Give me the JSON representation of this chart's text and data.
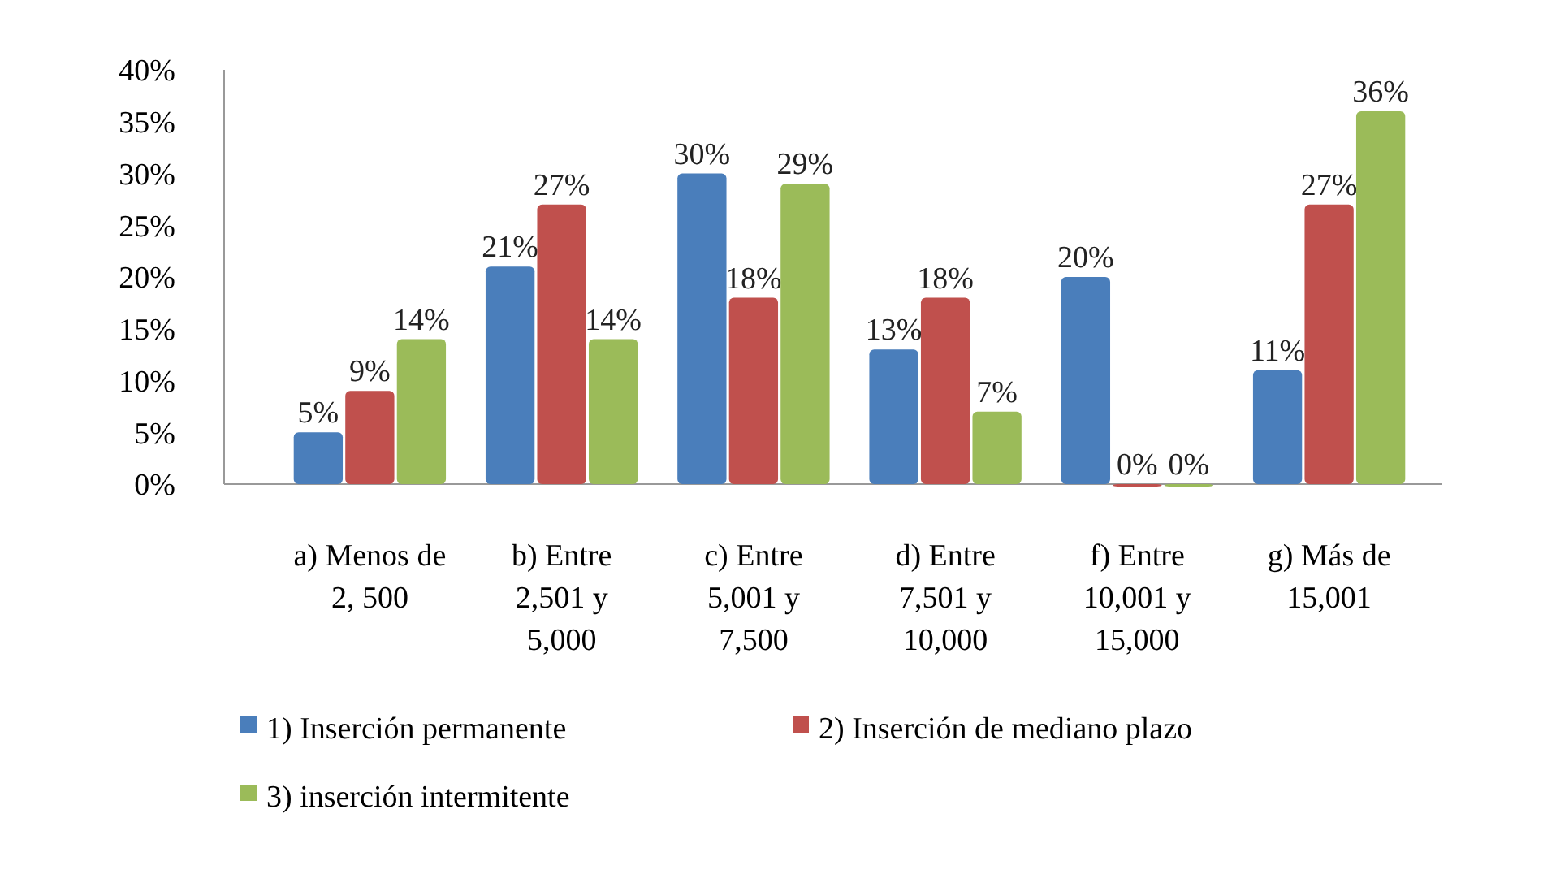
{
  "chart_data": {
    "type": "bar",
    "categories": [
      "a) Menos de 2, 500",
      "b) Entre 2,501 y 5,000",
      "c) Entre 5,001 y 7,500",
      "d) Entre 7,501 y 10,000",
      "f) Entre 10,001 y 15,000",
      "g) Más de 15,001"
    ],
    "series": [
      {
        "name": "1) Inserción permanente",
        "color": "#4a7ebb",
        "values": [
          5,
          21,
          30,
          13,
          20,
          11
        ],
        "value_labels": [
          "5%",
          "21%",
          "30%",
          "13%",
          "20%",
          "11%"
        ]
      },
      {
        "name": "2) Inserción de mediano plazo",
        "color": "#c0504d",
        "values": [
          9,
          27,
          18,
          18,
          0,
          27
        ],
        "value_labels": [
          "9%",
          "27%",
          "18%",
          "18%",
          "0%",
          "27%"
        ]
      },
      {
        "name": "3) inserción intermitente",
        "color": "#9bbb59",
        "values": [
          14,
          14,
          29,
          7,
          0,
          36
        ],
        "value_labels": [
          "14%",
          "14%",
          "29%",
          "7%",
          "0%",
          "36%"
        ]
      }
    ],
    "ylim": [
      0,
      40
    ],
    "yticks": [
      {
        "value": 0,
        "label": "0%"
      },
      {
        "value": 5,
        "label": "5%"
      },
      {
        "value": 10,
        "label": "10%"
      },
      {
        "value": 15,
        "label": "15%"
      },
      {
        "value": 20,
        "label": "20%"
      },
      {
        "value": 25,
        "label": "25%"
      },
      {
        "value": 30,
        "label": "30%"
      },
      {
        "value": 35,
        "label": "35%"
      },
      {
        "value": 40,
        "label": "40%"
      }
    ],
    "grid": false,
    "legend": "bottom"
  }
}
